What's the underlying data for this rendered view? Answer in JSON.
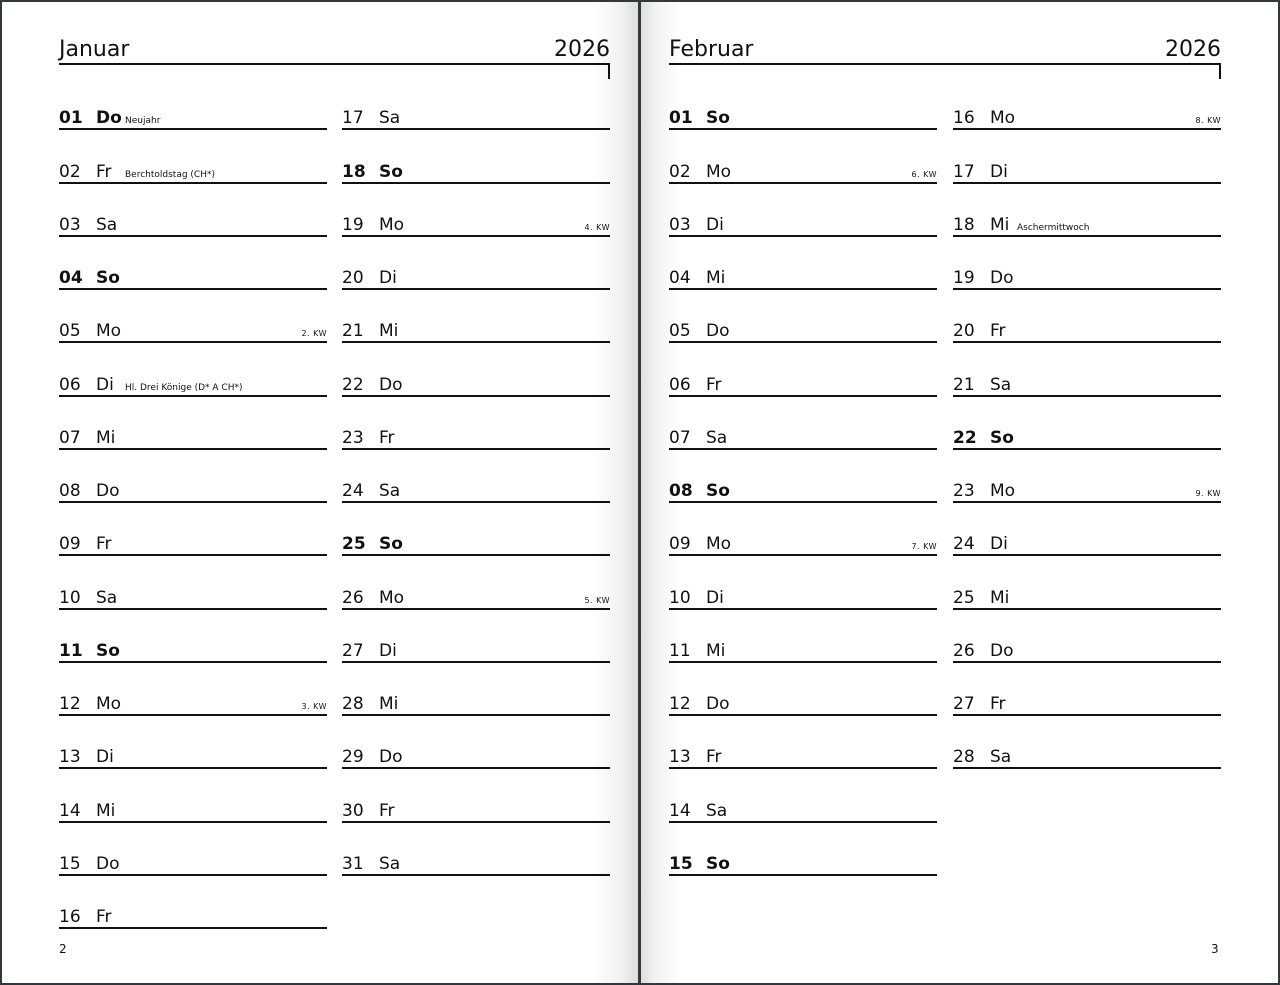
{
  "colors": {
    "border": "#2f3a3e",
    "ink": "#111111"
  },
  "pages": [
    {
      "page_number": "2",
      "month": "Januar",
      "year": "2026",
      "columns": [
        [
          {
            "d": "01",
            "wd": "Do",
            "b": true,
            "note": "Neujahr"
          },
          {
            "d": "02",
            "wd": "Fr",
            "note": "Berchtoldstag (CH*)"
          },
          {
            "d": "03",
            "wd": "Sa"
          },
          {
            "d": "04",
            "wd": "So",
            "b": true
          },
          {
            "d": "05",
            "wd": "Mo",
            "kw": "2. KW"
          },
          {
            "d": "06",
            "wd": "Di",
            "note": "Hl. Drei Könige (D* A CH*)"
          },
          {
            "d": "07",
            "wd": "Mi"
          },
          {
            "d": "08",
            "wd": "Do"
          },
          {
            "d": "09",
            "wd": "Fr"
          },
          {
            "d": "10",
            "wd": "Sa"
          },
          {
            "d": "11",
            "wd": "So",
            "b": true
          },
          {
            "d": "12",
            "wd": "Mo",
            "kw": "3. KW"
          },
          {
            "d": "13",
            "wd": "Di"
          },
          {
            "d": "14",
            "wd": "Mi"
          },
          {
            "d": "15",
            "wd": "Do"
          },
          {
            "d": "16",
            "wd": "Fr"
          }
        ],
        [
          {
            "d": "17",
            "wd": "Sa"
          },
          {
            "d": "18",
            "wd": "So",
            "b": true
          },
          {
            "d": "19",
            "wd": "Mo",
            "kw": "4. KW"
          },
          {
            "d": "20",
            "wd": "Di"
          },
          {
            "d": "21",
            "wd": "Mi"
          },
          {
            "d": "22",
            "wd": "Do"
          },
          {
            "d": "23",
            "wd": "Fr"
          },
          {
            "d": "24",
            "wd": "Sa"
          },
          {
            "d": "25",
            "wd": "So",
            "b": true
          },
          {
            "d": "26",
            "wd": "Mo",
            "kw": "5. KW"
          },
          {
            "d": "27",
            "wd": "Di"
          },
          {
            "d": "28",
            "wd": "Mi"
          },
          {
            "d": "29",
            "wd": "Do"
          },
          {
            "d": "30",
            "wd": "Fr"
          },
          {
            "d": "31",
            "wd": "Sa"
          }
        ]
      ]
    },
    {
      "page_number": "3",
      "month": "Februar",
      "year": "2026",
      "columns": [
        [
          {
            "d": "01",
            "wd": "So",
            "b": true
          },
          {
            "d": "02",
            "wd": "Mo",
            "kw": "6. KW"
          },
          {
            "d": "03",
            "wd": "Di"
          },
          {
            "d": "04",
            "wd": "Mi"
          },
          {
            "d": "05",
            "wd": "Do"
          },
          {
            "d": "06",
            "wd": "Fr"
          },
          {
            "d": "07",
            "wd": "Sa"
          },
          {
            "d": "08",
            "wd": "So",
            "b": true
          },
          {
            "d": "09",
            "wd": "Mo",
            "kw": "7. KW"
          },
          {
            "d": "10",
            "wd": "Di"
          },
          {
            "d": "11",
            "wd": "Mi"
          },
          {
            "d": "12",
            "wd": "Do"
          },
          {
            "d": "13",
            "wd": "Fr"
          },
          {
            "d": "14",
            "wd": "Sa"
          },
          {
            "d": "15",
            "wd": "So",
            "b": true
          }
        ],
        [
          {
            "d": "16",
            "wd": "Mo",
            "kw": "8. KW"
          },
          {
            "d": "17",
            "wd": "Di"
          },
          {
            "d": "18",
            "wd": "Mi",
            "note": "Aschermittwoch"
          },
          {
            "d": "19",
            "wd": "Do"
          },
          {
            "d": "20",
            "wd": "Fr"
          },
          {
            "d": "21",
            "wd": "Sa"
          },
          {
            "d": "22",
            "wd": "So",
            "b": true
          },
          {
            "d": "23",
            "wd": "Mo",
            "kw": "9. KW"
          },
          {
            "d": "24",
            "wd": "Di"
          },
          {
            "d": "25",
            "wd": "Mi"
          },
          {
            "d": "26",
            "wd": "Do"
          },
          {
            "d": "27",
            "wd": "Fr"
          },
          {
            "d": "28",
            "wd": "Sa"
          }
        ]
      ]
    }
  ]
}
